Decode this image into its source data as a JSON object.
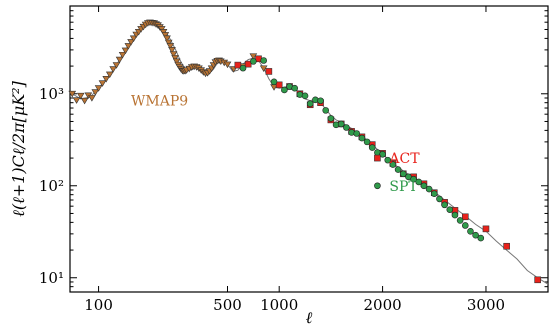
{
  "chart_data": {
    "type": "scatter",
    "title": "",
    "xlabel": "ℓ",
    "ylabel": "ℓ(ℓ+1)Cℓ/2π[μK²]",
    "x_scale": "nonuniform",
    "y_scale": "log",
    "xlim": [
      70,
      3600
    ],
    "ylim": [
      7,
      9000
    ],
    "x_ticks": [
      {
        "value": 100,
        "label": "100"
      },
      {
        "value": 500,
        "label": "500"
      },
      {
        "value": 1000,
        "label": "1000"
      },
      {
        "value": 2000,
        "label": "2000"
      },
      {
        "value": 3000,
        "label": "3000"
      }
    ],
    "y_ticks": [
      {
        "value": 10,
        "label": "10¹"
      },
      {
        "value": 100,
        "label": "10²"
      },
      {
        "value": 1000,
        "label": "10³"
      }
    ],
    "grid": false,
    "legend": "inline labels",
    "series": [
      {
        "name": "WMAP9",
        "label_at": {
          "x": 150,
          "y": 750
        },
        "color": "#b87333",
        "marker": "triangle-down",
        "x": [
          72,
          76,
          80,
          84,
          88,
          92,
          96,
          100,
          105,
          110,
          115,
          120,
          125,
          130,
          135,
          140,
          145,
          150,
          155,
          160,
          165,
          170,
          175,
          180,
          185,
          190,
          195,
          200,
          205,
          210,
          215,
          220,
          225,
          230,
          235,
          240,
          245,
          250,
          255,
          260,
          265,
          270,
          275,
          280,
          285,
          290,
          295,
          300,
          310,
          320,
          330,
          340,
          350,
          360,
          370,
          380,
          390,
          400,
          410,
          420,
          430,
          440,
          450,
          460,
          480,
          500,
          560,
          650,
          750,
          850,
          950
        ],
        "y": [
          1000,
          850,
          950,
          840,
          960,
          900,
          1040,
          1150,
          1300,
          1450,
          1620,
          1850,
          2050,
          2350,
          2650,
          2950,
          3300,
          3650,
          4000,
          4400,
          4700,
          5050,
          5350,
          5650,
          5850,
          5950,
          5900,
          5850,
          5700,
          5550,
          5300,
          5050,
          4700,
          4350,
          4000,
          3600,
          3300,
          3000,
          2700,
          2450,
          2250,
          2070,
          1950,
          1850,
          1780,
          1760,
          1770,
          1800,
          1870,
          1950,
          1980,
          1950,
          1890,
          1800,
          1720,
          1660,
          1680,
          1760,
          1890,
          2050,
          2200,
          2280,
          2300,
          2250,
          2180,
          2080,
          1850,
          1990,
          2560,
          1890,
          1180
        ]
      },
      {
        "name": "ACT",
        "label_at": {
          "x": 1950,
          "y": 200
        },
        "color": "#e8221b",
        "marker": "square",
        "x": [
          600,
          700,
          800,
          900,
          1000,
          1100,
          1200,
          1300,
          1400,
          1500,
          1600,
          1700,
          1800,
          1900,
          2000,
          2100,
          2200,
          2300,
          2400,
          2500,
          2600,
          2700,
          2800,
          3000,
          3200,
          3500
        ],
        "y": [
          2050,
          2100,
          2400,
          1750,
          1250,
          1200,
          1000,
          760,
          800,
          520,
          470,
          390,
          340,
          280,
          225,
          175,
          135,
          125,
          105,
          84,
          66,
          54,
          46,
          34,
          22,
          9.5
        ]
      },
      {
        "name": "SPT",
        "label_at": {
          "x": 1950,
          "y": 100
        },
        "color": "#2f9a4a",
        "marker": "circle",
        "x": [
          650,
          750,
          850,
          950,
          1050,
          1100,
          1150,
          1200,
          1250,
          1300,
          1350,
          1400,
          1450,
          1500,
          1550,
          1600,
          1650,
          1700,
          1750,
          1800,
          1850,
          1900,
          1950,
          2000,
          2050,
          2100,
          2150,
          2200,
          2250,
          2300,
          2350,
          2400,
          2450,
          2500,
          2550,
          2600,
          2650,
          2700,
          2750,
          2800,
          2850,
          2900,
          2950
        ],
        "y": [
          1900,
          2250,
          2300,
          1350,
          1100,
          1200,
          1150,
          980,
          950,
          780,
          860,
          840,
          660,
          540,
          460,
          470,
          430,
          380,
          370,
          330,
          300,
          260,
          230,
          220,
          190,
          170,
          150,
          135,
          125,
          118,
          110,
          100,
          92,
          82,
          72,
          62,
          55,
          48,
          42,
          37,
          32,
          29,
          27
        ]
      },
      {
        "name": "",
        "color": "#777777",
        "marker": "none",
        "style": "line",
        "x": [
          72,
          80,
          90,
          100,
          120,
          140,
          160,
          180,
          200,
          220,
          240,
          260,
          280,
          300,
          320,
          340,
          360,
          380,
          400,
          420,
          440,
          460,
          480,
          500,
          550,
          600,
          650,
          700,
          750,
          800,
          850,
          900,
          950,
          1000,
          1050,
          1100,
          1150,
          1200,
          1250,
          1300,
          1350,
          1400,
          1450,
          1500,
          1550,
          1600,
          1700,
          1800,
          1900,
          2000,
          2100,
          2200,
          2300,
          2400,
          2500,
          2600,
          2700,
          2800,
          2900,
          3000,
          3100,
          3200,
          3300,
          3400,
          3500,
          3600
        ],
        "y": [
          1000,
          880,
          920,
          1150,
          1800,
          3000,
          4500,
          5600,
          5850,
          5300,
          4200,
          3100,
          2200,
          1780,
          1820,
          1960,
          1880,
          1700,
          1680,
          1850,
          2150,
          2300,
          2250,
          2100,
          1750,
          1800,
          2100,
          2350,
          2450,
          2300,
          1900,
          1450,
          1200,
          1150,
          1180,
          1220,
          1150,
          1000,
          880,
          840,
          880,
          800,
          680,
          580,
          520,
          490,
          420,
          350,
          280,
          220,
          175,
          145,
          122,
          103,
          86,
          70,
          57,
          47,
          38,
          32,
          25,
          20,
          16,
          12,
          10,
          8.5
        ]
      }
    ]
  }
}
